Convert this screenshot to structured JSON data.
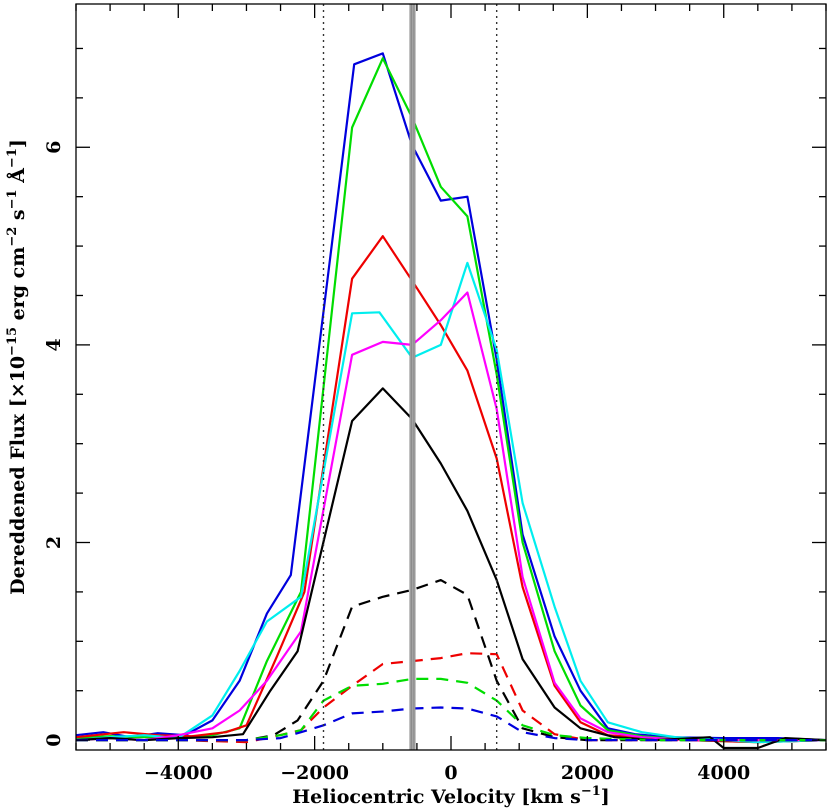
{
  "chart_data": {
    "type": "line",
    "title": "",
    "xlabel": "Heliocentric Velocity [km s",
    "xlabel_sup": "−1",
    "xlabel_end": "]",
    "ylabel": "Dereddened Flux [×10",
    "ylabel_sup": "−15",
    "ylabel_mid": " erg cm",
    "ylabel_sup2": "−2",
    "ylabel_mid2": " s",
    "ylabel_sup3": "−1",
    "ylabel_mid3": " Å",
    "ylabel_sup4": "−1",
    "ylabel_end": "]",
    "xlim": [
      -5500,
      5500
    ],
    "ylim": [
      -0.1,
      7.45
    ],
    "xticks": [
      -4000,
      -2000,
      0,
      2000,
      4000
    ],
    "xtick_labels": [
      "−4000",
      "−2000",
      "0",
      "2000",
      "4000"
    ],
    "yticks": [
      0,
      2,
      4,
      6
    ],
    "ytick_labels": [
      "0",
      "2",
      "4",
      "6"
    ],
    "x_minor_step": 500,
    "y_minor_step": 0.5,
    "vlines_dotted": [
      -1870,
      670
    ],
    "vline_band": [
      -600,
      -530
    ],
    "grid": false,
    "legend": "none",
    "series": [
      {
        "color": "#0000dd",
        "dash": false,
        "points": [
          [
            -5500,
            0.05
          ],
          [
            -5100,
            0.08
          ],
          [
            -4700,
            0.03
          ],
          [
            -4300,
            0.07
          ],
          [
            -3900,
            0.05
          ],
          [
            -3500,
            0.2
          ],
          [
            -3100,
            0.6
          ],
          [
            -2700,
            1.28
          ],
          [
            -2350,
            1.67
          ],
          [
            -1420,
            6.84
          ],
          [
            -1000,
            6.95
          ],
          [
            -570,
            6.02
          ],
          [
            -150,
            5.46
          ],
          [
            240,
            5.5
          ],
          [
            670,
            3.85
          ],
          [
            1050,
            2.08
          ],
          [
            1520,
            1.05
          ],
          [
            1900,
            0.5
          ],
          [
            2300,
            0.12
          ],
          [
            2700,
            0.06
          ],
          [
            3200,
            0.03
          ],
          [
            4000,
            0.02
          ],
          [
            4800,
            0.02
          ],
          [
            5500,
            0.0
          ]
        ]
      },
      {
        "color": "#00dd00",
        "dash": false,
        "points": [
          [
            -5500,
            0.02
          ],
          [
            -5000,
            0.04
          ],
          [
            -4500,
            0.03
          ],
          [
            -4000,
            0.03
          ],
          [
            -3500,
            0.05
          ],
          [
            -3100,
            0.12
          ],
          [
            -2700,
            0.8
          ],
          [
            -2200,
            1.5
          ],
          [
            -1450,
            6.2
          ],
          [
            -1000,
            6.9
          ],
          [
            -570,
            6.3
          ],
          [
            -150,
            5.6
          ],
          [
            240,
            5.3
          ],
          [
            670,
            3.7
          ],
          [
            1050,
            2.0
          ],
          [
            1520,
            0.9
          ],
          [
            1900,
            0.35
          ],
          [
            2300,
            0.1
          ],
          [
            2800,
            0.04
          ],
          [
            3500,
            0.0
          ],
          [
            4500,
            -0.02
          ],
          [
            5500,
            0.0
          ]
        ]
      },
      {
        "color": "#ee0000",
        "dash": false,
        "points": [
          [
            -5500,
            0.03
          ],
          [
            -4800,
            0.08
          ],
          [
            -4300,
            0.05
          ],
          [
            -3800,
            0.04
          ],
          [
            -3300,
            0.08
          ],
          [
            -3000,
            0.15
          ],
          [
            -2550,
            0.85
          ],
          [
            -2150,
            1.5
          ],
          [
            -1450,
            4.67
          ],
          [
            -1000,
            5.1
          ],
          [
            -570,
            4.65
          ],
          [
            -150,
            4.2
          ],
          [
            240,
            3.74
          ],
          [
            670,
            2.85
          ],
          [
            1050,
            1.55
          ],
          [
            1520,
            0.55
          ],
          [
            1900,
            0.18
          ],
          [
            2300,
            0.05
          ],
          [
            2900,
            0.02
          ],
          [
            3500,
            0.0
          ],
          [
            4500,
            -0.02
          ],
          [
            5500,
            0.0
          ]
        ]
      },
      {
        "color": "#00eeee",
        "dash": false,
        "points": [
          [
            -5500,
            0.0
          ],
          [
            -5000,
            0.03
          ],
          [
            -4500,
            0.05
          ],
          [
            -4000,
            0.02
          ],
          [
            -3500,
            0.25
          ],
          [
            -3100,
            0.7
          ],
          [
            -2700,
            1.2
          ],
          [
            -2200,
            1.45
          ],
          [
            -1450,
            4.32
          ],
          [
            -1050,
            4.33
          ],
          [
            -570,
            3.87
          ],
          [
            -150,
            4.0
          ],
          [
            240,
            4.83
          ],
          [
            670,
            3.95
          ],
          [
            1050,
            2.4
          ],
          [
            1520,
            1.35
          ],
          [
            1900,
            0.6
          ],
          [
            2300,
            0.18
          ],
          [
            2800,
            0.08
          ],
          [
            3300,
            0.03
          ],
          [
            4000,
            0.0
          ],
          [
            4500,
            -0.02
          ],
          [
            5500,
            0.0
          ]
        ]
      },
      {
        "color": "#ff00ff",
        "dash": false,
        "points": [
          [
            -5500,
            0.0
          ],
          [
            -5000,
            0.02
          ],
          [
            -4500,
            0.0
          ],
          [
            -4000,
            0.05
          ],
          [
            -3500,
            0.12
          ],
          [
            -3100,
            0.3
          ],
          [
            -2700,
            0.6
          ],
          [
            -2200,
            1.1
          ],
          [
            -1450,
            3.9
          ],
          [
            -1000,
            4.03
          ],
          [
            -570,
            4.0
          ],
          [
            -150,
            4.25
          ],
          [
            240,
            4.53
          ],
          [
            670,
            3.35
          ],
          [
            1050,
            1.65
          ],
          [
            1520,
            0.58
          ],
          [
            1900,
            0.22
          ],
          [
            2300,
            0.08
          ],
          [
            2800,
            0.03
          ],
          [
            3500,
            0.0
          ],
          [
            4500,
            0.0
          ],
          [
            5500,
            0.0
          ]
        ]
      },
      {
        "color": "#000000",
        "dash": false,
        "points": [
          [
            -5500,
            0.0
          ],
          [
            -5000,
            0.02
          ],
          [
            -4500,
            0.0
          ],
          [
            -4000,
            0.02
          ],
          [
            -3500,
            0.03
          ],
          [
            -3050,
            0.06
          ],
          [
            -2650,
            0.5
          ],
          [
            -2250,
            0.9
          ],
          [
            -1450,
            3.23
          ],
          [
            -1000,
            3.56
          ],
          [
            -570,
            3.25
          ],
          [
            -150,
            2.8
          ],
          [
            240,
            2.32
          ],
          [
            670,
            1.62
          ],
          [
            1050,
            0.82
          ],
          [
            1520,
            0.33
          ],
          [
            1900,
            0.12
          ],
          [
            2400,
            0.03
          ],
          [
            3000,
            0.0
          ],
          [
            3800,
            0.03
          ],
          [
            4000,
            -0.08
          ],
          [
            4500,
            -0.08
          ],
          [
            4900,
            0.02
          ],
          [
            5500,
            0.0
          ]
        ]
      },
      {
        "color": "#000000",
        "dash": true,
        "points": [
          [
            -5500,
            0.0
          ],
          [
            -4000,
            0.0
          ],
          [
            -3000,
            0.0
          ],
          [
            -2600,
            0.05
          ],
          [
            -2250,
            0.2
          ],
          [
            -1870,
            0.6
          ],
          [
            -1450,
            1.35
          ],
          [
            -1000,
            1.45
          ],
          [
            -570,
            1.52
          ],
          [
            -150,
            1.62
          ],
          [
            240,
            1.47
          ],
          [
            670,
            0.6
          ],
          [
            1050,
            0.12
          ],
          [
            1520,
            0.03
          ],
          [
            2000,
            0.0
          ],
          [
            3000,
            0.0
          ],
          [
            5500,
            0.0
          ]
        ]
      },
      {
        "color": "#ee0000",
        "dash": true,
        "points": [
          [
            -5500,
            0.0
          ],
          [
            -4000,
            0.0
          ],
          [
            -3000,
            -0.02
          ],
          [
            -2700,
            0.02
          ],
          [
            -2200,
            0.1
          ],
          [
            -1870,
            0.33
          ],
          [
            -1450,
            0.55
          ],
          [
            -1000,
            0.77
          ],
          [
            -570,
            0.8
          ],
          [
            -150,
            0.83
          ],
          [
            240,
            0.88
          ],
          [
            670,
            0.87
          ],
          [
            1050,
            0.3
          ],
          [
            1520,
            0.06
          ],
          [
            2000,
            0.0
          ],
          [
            3000,
            0.0
          ],
          [
            5500,
            0.0
          ]
        ]
      },
      {
        "color": "#00dd00",
        "dash": true,
        "points": [
          [
            -5500,
            0.0
          ],
          [
            -4000,
            0.0
          ],
          [
            -3000,
            0.0
          ],
          [
            -2500,
            0.05
          ],
          [
            -2200,
            0.1
          ],
          [
            -1870,
            0.4
          ],
          [
            -1450,
            0.55
          ],
          [
            -1000,
            0.57
          ],
          [
            -570,
            0.62
          ],
          [
            -150,
            0.62
          ],
          [
            240,
            0.58
          ],
          [
            670,
            0.4
          ],
          [
            1050,
            0.15
          ],
          [
            1520,
            0.05
          ],
          [
            2000,
            0.02
          ],
          [
            3000,
            0.0
          ],
          [
            5500,
            0.0
          ]
        ]
      },
      {
        "color": "#0000dd",
        "dash": true,
        "points": [
          [
            -5500,
            0.0
          ],
          [
            -4000,
            0.0
          ],
          [
            -3000,
            0.0
          ],
          [
            -2500,
            0.02
          ],
          [
            -2200,
            0.08
          ],
          [
            -1870,
            0.15
          ],
          [
            -1450,
            0.27
          ],
          [
            -1000,
            0.29
          ],
          [
            -570,
            0.32
          ],
          [
            -150,
            0.33
          ],
          [
            240,
            0.32
          ],
          [
            670,
            0.24
          ],
          [
            1050,
            0.08
          ],
          [
            1520,
            0.02
          ],
          [
            2000,
            0.0
          ],
          [
            3000,
            0.0
          ],
          [
            5500,
            0.0
          ]
        ]
      }
    ]
  }
}
